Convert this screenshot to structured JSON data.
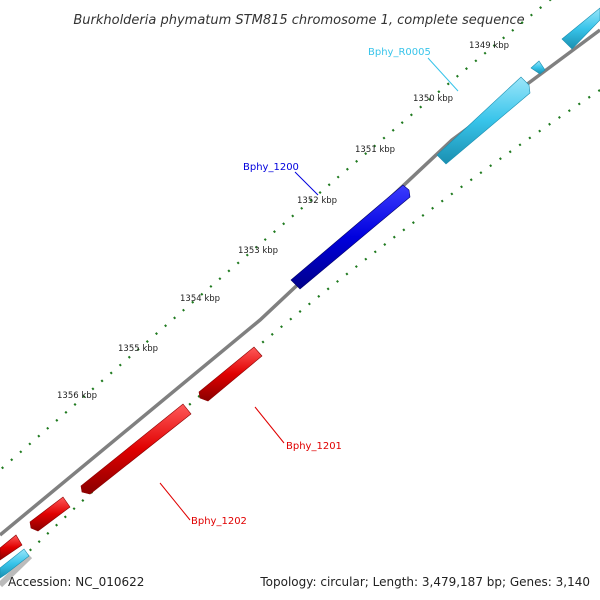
{
  "title": "Burkholderia phymatum STM815 chromosome 1, complete sequence",
  "footer": {
    "accession": "Accession: NC_010622",
    "summary": "Topology: circular; Length: 3,479,187 bp; Genes: 3,140"
  },
  "ruler": {
    "ticks": [
      "1349 kbp",
      "1350 kbp",
      "1351 kbp",
      "1352 kbp",
      "1353 kbp",
      "1354 kbp",
      "1355 kbp",
      "1356 kbp"
    ]
  },
  "genes": [
    {
      "name": "Bphy_R0005",
      "color": "#38c4ea"
    },
    {
      "name": "Bphy_1200",
      "color": "#0000dd"
    },
    {
      "name": "Bphy_1201",
      "color": "#e00000"
    },
    {
      "name": "Bphy_1202",
      "color": "#e00000"
    }
  ],
  "colors": {
    "backbone": "#777777",
    "tick_dots": "#1f7a1f",
    "forward_gene_light": "#38c4ea",
    "forward_gene_dark": "#0000dd",
    "reverse_gene": "#e00000"
  }
}
